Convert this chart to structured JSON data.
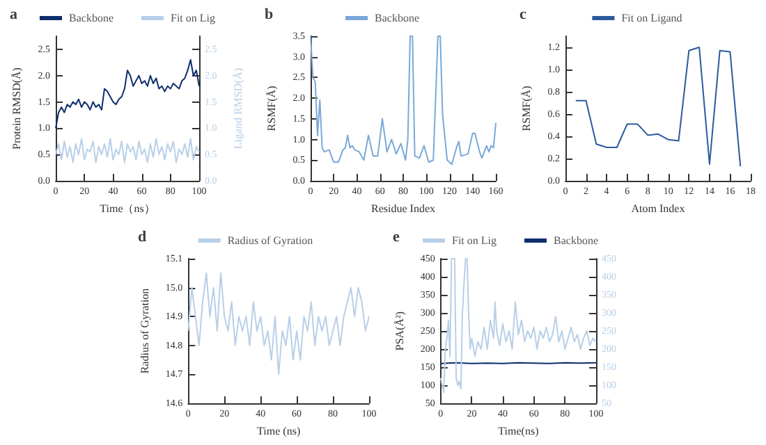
{
  "chart_data": [
    {
      "type": "line",
      "title": "a",
      "xlabel": "Time（ns）",
      "ylabel": "Protein RMSD(Å)",
      "y2label": "Ligand RMSD(Å)",
      "legend": "top",
      "x": [
        0,
        2,
        4,
        6,
        8,
        10,
        12,
        14,
        16,
        18,
        20,
        22,
        24,
        26,
        28,
        30,
        32,
        34,
        36,
        38,
        40,
        42,
        44,
        46,
        48,
        50,
        52,
        54,
        56,
        58,
        60,
        62,
        64,
        66,
        68,
        70,
        72,
        74,
        76,
        78,
        80,
        82,
        84,
        86,
        88,
        90,
        92,
        94,
        96,
        98,
        100
      ],
      "series": [
        {
          "name": "Backbone",
          "color": "#0d2d6b",
          "values": [
            1.0,
            1.3,
            1.4,
            1.3,
            1.45,
            1.4,
            1.5,
            1.45,
            1.55,
            1.4,
            1.5,
            1.45,
            1.35,
            1.5,
            1.4,
            1.45,
            1.35,
            1.75,
            1.7,
            1.6,
            1.5,
            1.45,
            1.55,
            1.6,
            1.75,
            2.1,
            2.0,
            1.8,
            1.9,
            2.0,
            1.85,
            1.9,
            1.8,
            2.0,
            1.85,
            1.95,
            1.75,
            1.8,
            1.7,
            1.8,
            1.75,
            1.85,
            1.8,
            1.75,
            1.9,
            1.95,
            2.1,
            2.3,
            2.0,
            2.1,
            1.8
          ]
        },
        {
          "name": "Fit on Lig",
          "color": "#b8cfe8",
          "axis": "y2",
          "values": [
            0.5,
            0.7,
            0.4,
            0.75,
            0.45,
            0.65,
            0.35,
            0.7,
            0.5,
            0.8,
            0.4,
            0.6,
            0.55,
            0.75,
            0.35,
            0.65,
            0.5,
            0.7,
            0.45,
            0.8,
            0.4,
            0.6,
            0.5,
            0.75,
            0.35,
            0.7,
            0.55,
            0.65,
            0.4,
            0.75,
            0.5,
            0.6,
            0.35,
            0.7,
            0.45,
            0.8,
            0.5,
            0.65,
            0.4,
            0.7,
            0.55,
            0.75,
            0.35,
            0.6,
            0.5,
            0.7,
            0.45,
            0.8,
            0.4,
            0.65,
            0.55
          ]
        }
      ],
      "xlim": [
        0,
        100
      ],
      "xticks": [
        0,
        20,
        40,
        60,
        80,
        100
      ],
      "ylim": [
        0,
        2.75
      ],
      "yticks": [
        {
          "value": 0,
          "label": "0.0"
        },
        {
          "value": 0.5,
          "label": "0.5"
        },
        {
          "value": 1,
          "label": "1.0"
        },
        {
          "value": 1.5,
          "label": "1.5"
        },
        {
          "value": 2,
          "label": "2.0"
        },
        {
          "value": 2.5,
          "label": "2.5"
        }
      ],
      "y2lim": [
        0,
        2.75
      ],
      "y2ticks": [
        {
          "value": 0,
          "label": "0.0"
        },
        {
          "value": 0.5,
          "label": "0.5"
        },
        {
          "value": 1,
          "label": "1.0"
        },
        {
          "value": 1.5,
          "label": "1.5"
        },
        {
          "value": 2,
          "label": "2.0"
        },
        {
          "value": 2.5,
          "label": "2.5"
        }
      ]
    },
    {
      "type": "line",
      "title": "b",
      "xlabel": "Residue Index",
      "ylabel": "RSMF(Å)",
      "legend": "top",
      "x": [
        0,
        2,
        4,
        6,
        8,
        10,
        12,
        16,
        20,
        24,
        28,
        30,
        32,
        34,
        36,
        38,
        42,
        46,
        50,
        54,
        58,
        62,
        66,
        70,
        74,
        78,
        82,
        84,
        86,
        88,
        90,
        94,
        98,
        102,
        106,
        110,
        112,
        114,
        118,
        122,
        126,
        128,
        130,
        136,
        140,
        142,
        146,
        148,
        152,
        154,
        156,
        158,
        160
      ],
      "series": [
        {
          "name": "Backbone",
          "color": "#7aa8d8",
          "values": [
            3.5,
            2.5,
            2.4,
            1.1,
            1.95,
            0.8,
            0.7,
            0.75,
            0.45,
            0.45,
            0.75,
            0.8,
            1.1,
            0.8,
            0.85,
            0.75,
            0.7,
            0.5,
            1.1,
            0.6,
            0.6,
            1.5,
            0.7,
            1.0,
            0.65,
            0.9,
            0.5,
            1.0,
            3.5,
            3.5,
            0.6,
            0.55,
            0.85,
            0.45,
            0.5,
            3.5,
            3.5,
            1.6,
            0.5,
            0.4,
            0.8,
            0.95,
            0.6,
            0.65,
            1.15,
            1.15,
            0.7,
            0.55,
            0.85,
            0.7,
            0.85,
            0.8,
            1.4
          ]
        }
      ],
      "xlim": [
        0,
        160
      ],
      "xticks": [
        0,
        20,
        40,
        60,
        80,
        100,
        120,
        140,
        160
      ],
      "ylim": [
        0,
        3.5
      ],
      "yticks": [
        {
          "value": 0,
          "label": "0.0"
        },
        {
          "value": 0.5,
          "label": "0.5"
        },
        {
          "value": 1,
          "label": "1.0"
        },
        {
          "value": 1.5,
          "label": "1.5"
        },
        {
          "value": 2,
          "label": "2.0"
        },
        {
          "value": 2.5,
          "label": "2.5"
        },
        {
          "value": 3,
          "label": "3.0"
        },
        {
          "value": 3.5,
          "label": "3.5"
        }
      ]
    },
    {
      "type": "line",
      "title": "c",
      "xlabel": "Atom Index",
      "ylabel": "RSMF(Å)",
      "legend": "top",
      "x": [
        1,
        2,
        3,
        4,
        5,
        6,
        7,
        8,
        9,
        10,
        11,
        12,
        13,
        14,
        15,
        16,
        17
      ],
      "series": [
        {
          "name": "Fit on Ligand",
          "color": "#2a5a9c",
          "values": [
            0.72,
            0.72,
            0.33,
            0.3,
            0.3,
            0.51,
            0.51,
            0.41,
            0.42,
            0.37,
            0.36,
            1.17,
            1.2,
            0.15,
            1.17,
            1.16,
            0.13
          ]
        }
      ],
      "xlim": [
        0,
        18
      ],
      "xticks": [
        0,
        2,
        4,
        6,
        8,
        10,
        12,
        14,
        16,
        18
      ],
      "ylim": [
        0,
        1.3
      ],
      "yticks": [
        {
          "value": 0,
          "label": "0.0"
        },
        {
          "value": 0.2,
          "label": "0.2"
        },
        {
          "value": 0.4,
          "label": "0.4"
        },
        {
          "value": 0.6,
          "label": "0.6"
        },
        {
          "value": 0.8,
          "label": "0.8"
        },
        {
          "value": 1,
          "label": "1.0"
        },
        {
          "value": 1.2,
          "label": "1.2"
        }
      ]
    },
    {
      "type": "line",
      "title": "d",
      "xlabel": "Time (ns)",
      "ylabel": "Radius of Gyration",
      "legend": "top",
      "x": [
        0,
        2,
        4,
        6,
        8,
        10,
        12,
        14,
        16,
        18,
        20,
        22,
        24,
        26,
        28,
        30,
        32,
        34,
        36,
        38,
        40,
        42,
        44,
        46,
        48,
        50,
        52,
        54,
        56,
        58,
        60,
        62,
        64,
        66,
        68,
        70,
        72,
        74,
        76,
        78,
        80,
        82,
        84,
        86,
        88,
        90,
        92,
        94,
        96,
        98,
        100
      ],
      "series": [
        {
          "name": "Radius of Gyration",
          "color": "#b8cfe8",
          "values": [
            14.85,
            15.0,
            14.9,
            14.8,
            14.95,
            15.05,
            14.9,
            15.0,
            14.85,
            15.05,
            14.9,
            14.85,
            14.95,
            14.8,
            14.9,
            14.85,
            14.9,
            14.8,
            14.95,
            14.85,
            14.9,
            14.8,
            14.85,
            14.75,
            14.9,
            14.7,
            14.85,
            14.8,
            14.9,
            14.75,
            14.85,
            14.75,
            14.9,
            14.85,
            14.95,
            14.8,
            14.9,
            14.85,
            14.9,
            14.8,
            14.85,
            14.9,
            14.8,
            14.9,
            14.95,
            15.0,
            14.9,
            15.0,
            14.95,
            14.85,
            14.9
          ]
        }
      ],
      "xlim": [
        0,
        100
      ],
      "xticks": [
        0,
        20,
        40,
        60,
        80,
        100
      ],
      "ylim": [
        14.6,
        15.1
      ],
      "yticks": [
        14.6,
        14.7,
        14.8,
        14.9,
        {
          "value": 15,
          "label": "15.0"
        },
        15.1
      ]
    },
    {
      "type": "line",
      "title": "e",
      "xlabel": "Time(ns)",
      "ylabel": "PSA(Å²)",
      "legend": "top",
      "series": [
        {
          "name": "Fit on Lig",
          "color": "#b8cfe8",
          "axis": "y2",
          "x": [
            0,
            2,
            3,
            4,
            5,
            6,
            7,
            8,
            9,
            10,
            11,
            12,
            13,
            14,
            15,
            16,
            17,
            18,
            19,
            20,
            22,
            24,
            26,
            28,
            30,
            32,
            34,
            35,
            36,
            38,
            40,
            42,
            44,
            46,
            48,
            50,
            52,
            54,
            56,
            58,
            60,
            62,
            64,
            66,
            68,
            70,
            72,
            74,
            76,
            78,
            80,
            82,
            84,
            86,
            88,
            90,
            92,
            94,
            96,
            98,
            100
          ],
          "values": [
            120,
            80,
            200,
            230,
            280,
            180,
            450,
            450,
            450,
            120,
            100,
            110,
            90,
            300,
            380,
            450,
            450,
            300,
            200,
            230,
            180,
            220,
            200,
            260,
            200,
            280,
            230,
            330,
            250,
            210,
            270,
            220,
            250,
            200,
            330,
            240,
            280,
            220,
            250,
            230,
            260,
            200,
            250,
            230,
            260,
            220,
            240,
            290,
            220,
            250,
            200,
            230,
            260,
            220,
            240,
            200,
            230,
            250,
            210,
            230,
            220
          ]
        },
        {
          "name": "Backbone",
          "color": "#0d2d6b",
          "x": [
            0,
            10,
            20,
            30,
            40,
            50,
            60,
            70,
            80,
            90,
            100
          ],
          "values": [
            160,
            162,
            160,
            161,
            160,
            162,
            161,
            160,
            162,
            161,
            162
          ]
        }
      ],
      "xlim": [
        0,
        100
      ],
      "xticks": [
        0,
        20,
        40,
        60,
        80,
        100
      ],
      "ylim": [
        50,
        450
      ],
      "yticks": [
        50,
        100,
        150,
        200,
        250,
        300,
        350,
        400,
        450
      ],
      "y2lim": [
        50,
        450
      ],
      "y2ticks": [
        50,
        100,
        150,
        200,
        250,
        300,
        350,
        400,
        450
      ]
    }
  ]
}
